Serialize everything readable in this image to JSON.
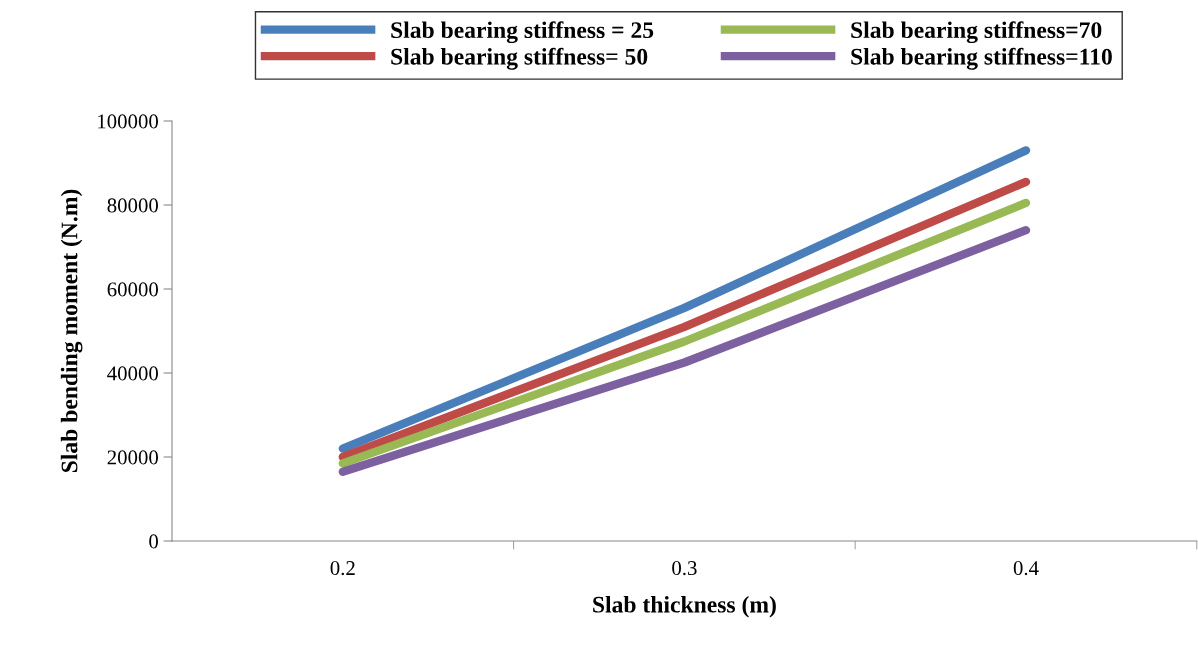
{
  "chart_data": {
    "type": "line",
    "xlabel": "Slab thickness (m)",
    "ylabel": "Slab bending moment (N.m)",
    "categories": [
      "0.2",
      "0.3",
      "0.4"
    ],
    "series": [
      {
        "name": "Slab bearing stiffness = 25",
        "color": "#4a7ebb",
        "values": [
          22000,
          55500,
          93000
        ]
      },
      {
        "name": "Slab bearing stiffness= 50",
        "color": "#be4b48",
        "values": [
          20000,
          51000,
          85500
        ]
      },
      {
        "name": "Slab bearing stiffness=70",
        "color": "#98b954",
        "values": [
          18500,
          47500,
          80500
        ]
      },
      {
        "name": "Slab bearing stiffness=110",
        "color": "#7d60a0",
        "values": [
          16500,
          42500,
          74000
        ]
      }
    ],
    "ylim": [
      0,
      100000
    ],
    "yticks": [
      0,
      20000,
      40000,
      60000,
      80000,
      100000
    ],
    "grid": false,
    "legend": "top",
    "marker": "none",
    "line_style": "solid"
  }
}
